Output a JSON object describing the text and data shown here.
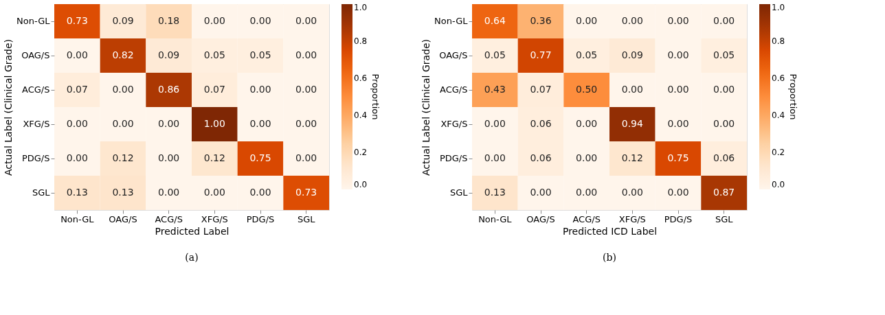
{
  "chart_data": [
    {
      "type": "heatmap",
      "xlabel": "Predicted Label",
      "ylabel": "Actual Label (Clinical Grade)",
      "clabel": "Proportion",
      "categories": [
        "Non-GL",
        "OAG/S",
        "ACG/S",
        "XFG/S",
        "PDG/S",
        "SGL"
      ],
      "y_categories": [
        "Non-GL",
        "OAG/S",
        "ACG/S",
        "XFG/S",
        "PDG/S",
        "SGL"
      ],
      "cells": [
        [
          0.73,
          0.09,
          0.18,
          0.0,
          0.0,
          0.0
        ],
        [
          0.0,
          0.82,
          0.09,
          0.05,
          0.05,
          0.0
        ],
        [
          0.07,
          0.0,
          0.86,
          0.07,
          0.0,
          0.0
        ],
        [
          0.0,
          0.0,
          0.0,
          1.0,
          0.0,
          0.0
        ],
        [
          0.0,
          0.12,
          0.0,
          0.12,
          0.75,
          0.0
        ],
        [
          0.13,
          0.13,
          0.0,
          0.0,
          0.0,
          0.73
        ]
      ],
      "cell_labels": [
        [
          "0.73",
          "0.09",
          "0.18",
          "0.00",
          "0.00",
          "0.00"
        ],
        [
          "0.00",
          "0.82",
          "0.09",
          "0.05",
          "0.05",
          "0.00"
        ],
        [
          "0.07",
          "0.00",
          "0.86",
          "0.07",
          "0.00",
          "0.00"
        ],
        [
          "0.00",
          "0.00",
          "0.00",
          "1.00",
          "0.00",
          "0.00"
        ],
        [
          "0.00",
          "0.12",
          "0.00",
          "0.12",
          "0.75",
          "0.00"
        ],
        [
          "0.13",
          "0.13",
          "0.00",
          "0.00",
          "0.00",
          "0.73"
        ]
      ],
      "clim": [
        0,
        1
      ],
      "cticks": [
        {
          "value": 0,
          "label": "0.0"
        },
        {
          "value": 0.2,
          "label": "0.2"
        },
        {
          "value": 0.4,
          "label": "0.4"
        },
        {
          "value": 0.6,
          "label": "0.6"
        },
        {
          "value": 0.8,
          "label": "0.8"
        },
        {
          "value": 1,
          "label": "1.0"
        }
      ],
      "annotations": [
        "(a)"
      ]
    },
    {
      "type": "heatmap",
      "xlabel": "Predicted ICD Label",
      "ylabel": "Actual Label (Clinical Grade)",
      "clabel": "Proportion",
      "categories": [
        "Non-GL",
        "OAG/S",
        "ACG/S",
        "XFG/S",
        "PDG/S",
        "SGL"
      ],
      "y_categories": [
        "Non-GL",
        "OAG/S",
        "ACG/S",
        "XFG/S",
        "PDG/S",
        "SGL"
      ],
      "cells": [
        [
          0.64,
          0.36,
          0.0,
          0.0,
          0.0,
          0.0
        ],
        [
          0.05,
          0.77,
          0.05,
          0.09,
          0.0,
          0.05
        ],
        [
          0.43,
          0.07,
          0.5,
          0.0,
          0.0,
          0.0
        ],
        [
          0.0,
          0.06,
          0.0,
          0.94,
          0.0,
          0.0
        ],
        [
          0.0,
          0.06,
          0.0,
          0.12,
          0.75,
          0.06
        ],
        [
          0.13,
          0.0,
          0.0,
          0.0,
          0.0,
          0.87
        ]
      ],
      "cell_labels": [
        [
          "0.64",
          "0.36",
          "0.00",
          "0.00",
          "0.00",
          "0.00"
        ],
        [
          "0.05",
          "0.77",
          "0.05",
          "0.09",
          "0.00",
          "0.05"
        ],
        [
          "0.43",
          "0.07",
          "0.50",
          "0.00",
          "0.00",
          "0.00"
        ],
        [
          "0.00",
          "0.06",
          "0.00",
          "0.94",
          "0.00",
          "0.00"
        ],
        [
          "0.00",
          "0.06",
          "0.00",
          "0.12",
          "0.75",
          "0.06"
        ],
        [
          "0.13",
          "0.00",
          "0.00",
          "0.00",
          "0.00",
          "0.87"
        ]
      ],
      "clim": [
        0,
        1
      ],
      "cticks": [
        {
          "value": 0,
          "label": "0.0"
        },
        {
          "value": 0.2,
          "label": "0.2"
        },
        {
          "value": 0.4,
          "label": "0.4"
        },
        {
          "value": 0.6,
          "label": "0.6"
        },
        {
          "value": 0.8,
          "label": "0.8"
        },
        {
          "value": 1,
          "label": "1.0"
        }
      ],
      "annotations": [
        "(b)"
      ]
    }
  ]
}
